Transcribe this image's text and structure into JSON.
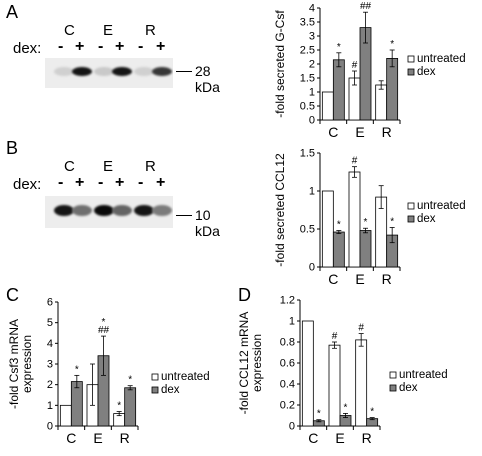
{
  "panels": {
    "A": {
      "letter": "A"
    },
    "B": {
      "letter": "B"
    },
    "C": {
      "letter": "C"
    },
    "D": {
      "letter": "D"
    }
  },
  "blots": [
    {
      "group_labels": [
        "C",
        "E",
        "R"
      ],
      "dex_label": "dex:",
      "signs": [
        "-",
        "+",
        "-",
        "+",
        "-",
        "+"
      ],
      "marker": "28 kDa",
      "band_darkness": [
        0.12,
        0.95,
        0.15,
        0.95,
        0.12,
        0.8
      ]
    },
    {
      "group_labels": [
        "C",
        "E",
        "R"
      ],
      "dex_label": "dex:",
      "signs": [
        "-",
        "+",
        "-",
        "+",
        "-",
        "+"
      ],
      "marker": "10 kDa",
      "band_darkness": [
        0.95,
        0.55,
        1.0,
        0.6,
        0.95,
        0.5
      ]
    }
  ],
  "chart_data": [
    {
      "panel": "A",
      "type": "bar",
      "categories": [
        "C",
        "E",
        "R"
      ],
      "ylabel": "-fold secreted G-Csf",
      "ylim": [
        0,
        4
      ],
      "yticks": [
        "0",
        "0.5",
        "1",
        "1.5",
        "2",
        "2.5",
        "3",
        "3.5",
        "4"
      ],
      "ytick_values": [
        0,
        0.5,
        1,
        1.5,
        2,
        2.5,
        3,
        3.5,
        4
      ],
      "legend_position": "right",
      "series": [
        {
          "name": "untreated",
          "color": "#ffffff",
          "values": [
            1.0,
            1.5,
            1.25
          ],
          "errors": [
            0,
            0.25,
            0.15
          ],
          "annotations": [
            "",
            "#",
            ""
          ]
        },
        {
          "name": "dex",
          "color": "#808080",
          "values": [
            2.15,
            3.3,
            2.2
          ],
          "errors": [
            0.25,
            0.55,
            0.3
          ],
          "annotations": [
            "*",
            "*\n##",
            "*"
          ]
        }
      ]
    },
    {
      "panel": "B",
      "type": "bar",
      "categories": [
        "C",
        "E",
        "R"
      ],
      "ylabel": "-fold secreted CCL12",
      "ylim": [
        0,
        1.5
      ],
      "yticks": [
        "0",
        "0.5",
        "1",
        "1.5"
      ],
      "ytick_values": [
        0,
        0.5,
        1,
        1.5
      ],
      "legend_position": "right",
      "series": [
        {
          "name": "untreated",
          "color": "#ffffff",
          "values": [
            1.0,
            1.25,
            0.92
          ],
          "errors": [
            0,
            0.07,
            0.15
          ],
          "annotations": [
            "",
            "#",
            ""
          ]
        },
        {
          "name": "dex",
          "color": "#808080",
          "values": [
            0.46,
            0.48,
            0.42
          ],
          "errors": [
            0.02,
            0.03,
            0.1
          ],
          "annotations": [
            "*",
            "*",
            "*"
          ]
        }
      ]
    },
    {
      "panel": "C",
      "type": "bar",
      "categories": [
        "C",
        "E",
        "R"
      ],
      "ylabel": "-fold Csf3 mRNA\nexpression",
      "ylim": [
        0,
        6
      ],
      "yticks": [
        "0",
        "1",
        "2",
        "3",
        "4",
        "5",
        "6"
      ],
      "ytick_values": [
        0,
        1,
        2,
        3,
        4,
        5,
        6
      ],
      "legend_position": "right",
      "series": [
        {
          "name": "untreated",
          "color": "#ffffff",
          "values": [
            1.0,
            2.0,
            0.6
          ],
          "errors": [
            0,
            1.0,
            0.1
          ],
          "annotations": [
            "",
            "",
            "*"
          ]
        },
        {
          "name": "dex",
          "color": "#808080",
          "values": [
            2.15,
            3.4,
            1.85
          ],
          "errors": [
            0.3,
            0.95,
            0.1
          ],
          "annotations": [
            "*",
            "*\n##",
            "*"
          ]
        }
      ]
    },
    {
      "panel": "D",
      "type": "bar",
      "categories": [
        "C",
        "E",
        "R"
      ],
      "ylabel": "-fold CCL12 mRNA\nexpression",
      "ylim": [
        0,
        1.2
      ],
      "yticks": [
        "0",
        "0.2",
        "0.4",
        "0.6",
        "0.8",
        "1",
        "1.2"
      ],
      "ytick_values": [
        0,
        0.2,
        0.4,
        0.6,
        0.8,
        1.0,
        1.2
      ],
      "legend_position": "right",
      "series": [
        {
          "name": "untreated",
          "color": "#ffffff",
          "values": [
            1.0,
            0.77,
            0.82
          ],
          "errors": [
            0,
            0.03,
            0.06
          ],
          "annotations": [
            "",
            "#",
            "#"
          ]
        },
        {
          "name": "dex",
          "color": "#808080",
          "values": [
            0.05,
            0.1,
            0.07
          ],
          "errors": [
            0.01,
            0.02,
            0.01
          ],
          "annotations": [
            "*",
            "*",
            "*"
          ]
        }
      ]
    }
  ]
}
